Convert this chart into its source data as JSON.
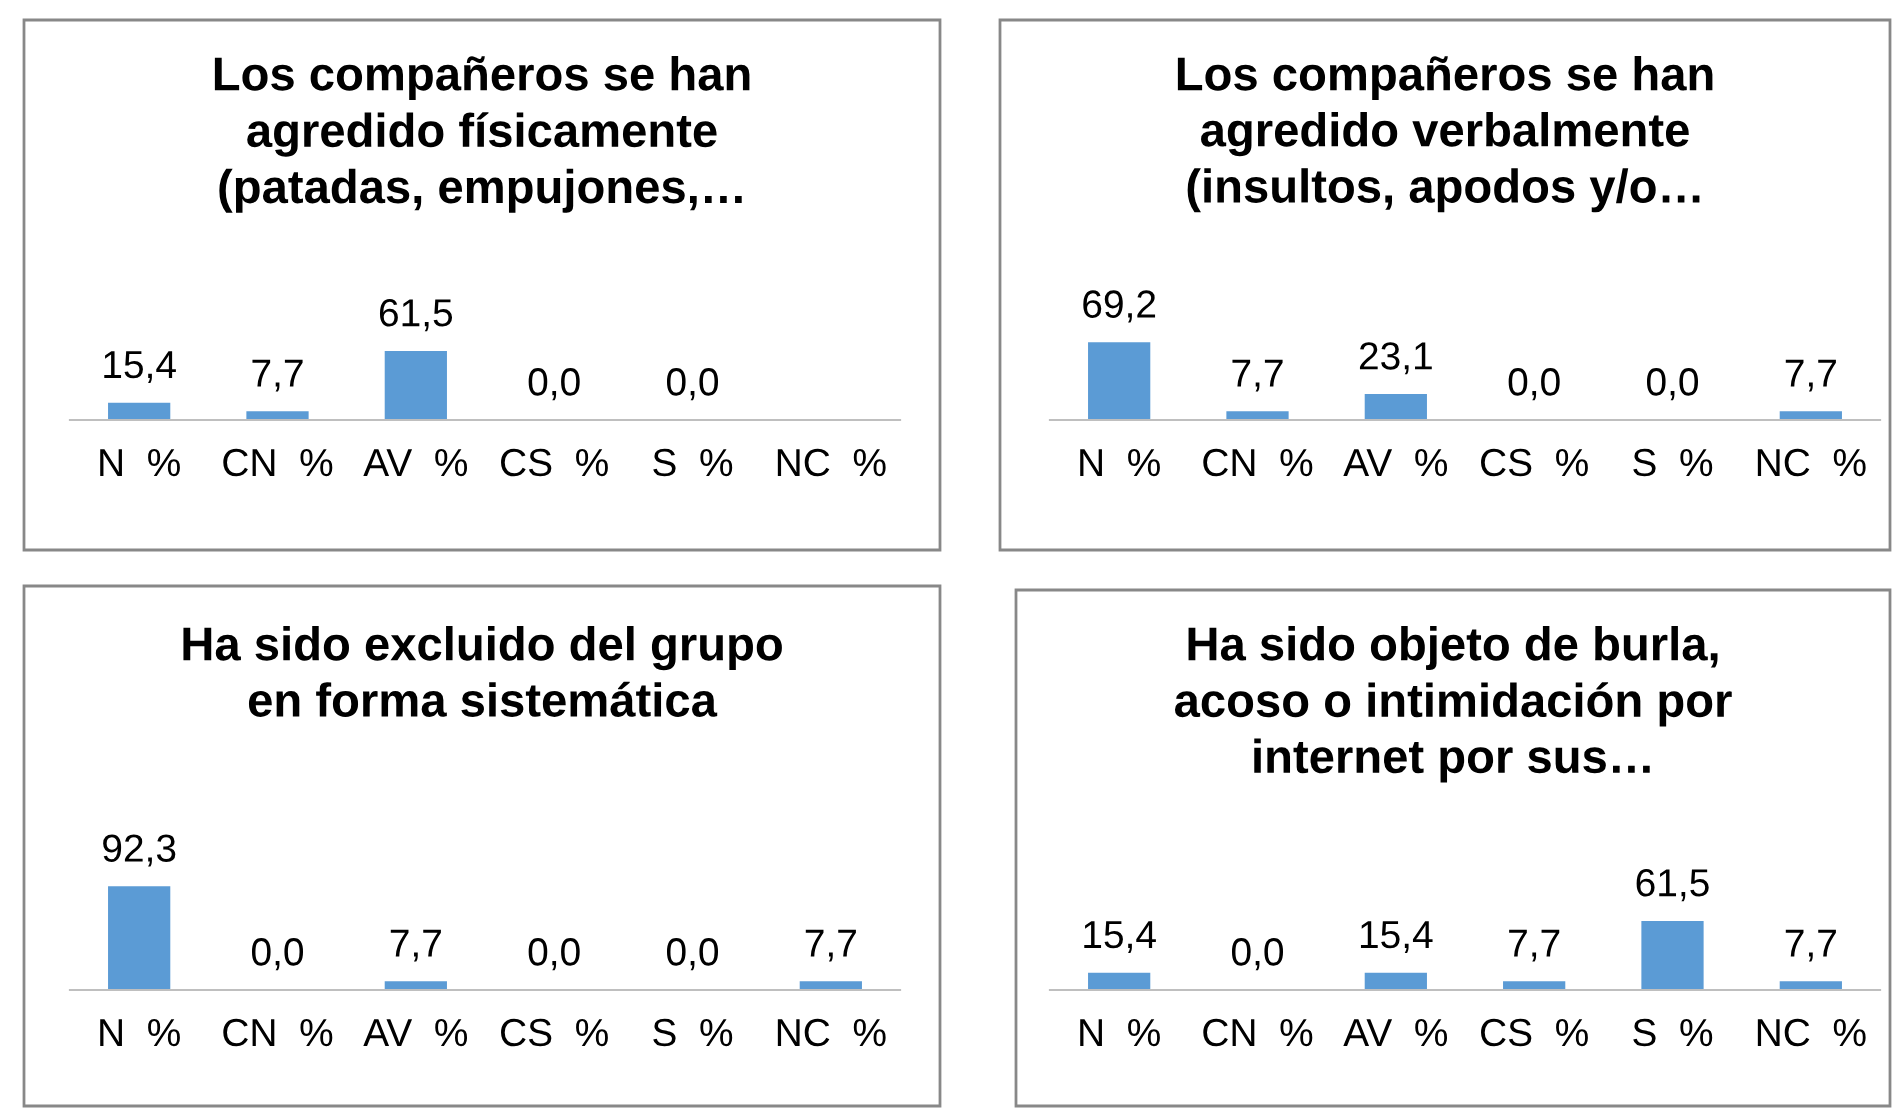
{
  "chart_data": [
    {
      "type": "bar",
      "title": "Los compañeros se han\nagredido físicamente\n(patadas, empujones,…",
      "categories": [
        "N  %",
        "CN  %",
        "AV  %",
        "CS  %",
        "S  %",
        "NC  %"
      ],
      "values": [
        15.4,
        7.7,
        61.5,
        0.0,
        0.0,
        null
      ],
      "value_labels": [
        "15,4",
        "7,7",
        "61,5",
        "0,0",
        "0,0",
        null
      ],
      "color": "#5b9bd5",
      "grid": false,
      "legend": false
    },
    {
      "type": "bar",
      "title": "Los compañeros se han\nagredido verbalmente\n(insultos, apodos y/o…",
      "categories": [
        "N  %",
        "CN  %",
        "AV  %",
        "CS  %",
        "S  %",
        "NC  %"
      ],
      "values": [
        69.2,
        7.7,
        23.1,
        0.0,
        0.0,
        7.7
      ],
      "value_labels": [
        "69,2",
        "7,7",
        "23,1",
        "0,0",
        "0,0",
        "7,7"
      ],
      "color": "#5b9bd5",
      "grid": false,
      "legend": false
    },
    {
      "type": "bar",
      "title": "Ha sido excluido del grupo\nen forma sistemática",
      "categories": [
        "N  %",
        "CN  %",
        "AV  %",
        "CS  %",
        "S  %",
        "NC  %"
      ],
      "values": [
        92.3,
        0.0,
        7.7,
        0.0,
        0.0,
        7.7
      ],
      "value_labels": [
        "92,3",
        "0,0",
        "7,7",
        "0,0",
        "0,0",
        "7,7"
      ],
      "color": "#5b9bd5",
      "grid": false,
      "legend": false
    },
    {
      "type": "bar",
      "title": "Ha sido objeto de burla,\nacoso o intimidación por\ninternet por sus…",
      "categories": [
        "N  %",
        "CN  %",
        "AV  %",
        "CS  %",
        "S  %",
        "NC  %"
      ],
      "values": [
        15.4,
        0.0,
        15.4,
        7.7,
        61.5,
        7.7
      ],
      "value_labels": [
        "15,4",
        "0,0",
        "15,4",
        "7,7",
        "61,5",
        "7,7"
      ],
      "color": "#5b9bd5",
      "grid": false,
      "legend": false
    }
  ]
}
